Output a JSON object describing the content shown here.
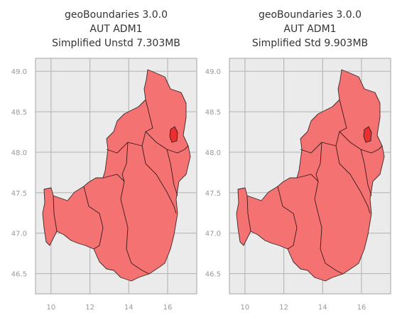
{
  "chart_data": [
    {
      "type": "map",
      "title": [
        "geoBoundaries 3.0.0",
        "AUT ADM1",
        "Simplified Unstd 7.303MB"
      ],
      "xlim": [
        9.2,
        17.5
      ],
      "xticks": [
        10,
        12,
        14,
        16
      ],
      "ylim": [
        46.25,
        49.16
      ],
      "yticks": [
        {
          "value": 46.5,
          "label": "46.5"
        },
        {
          "value": 47,
          "label": "47.0"
        },
        {
          "value": 47.5,
          "label": "47.5"
        },
        {
          "value": 48,
          "label": "48.0"
        },
        {
          "value": 48.5,
          "label": "48.5"
        },
        {
          "value": 49,
          "label": "49.0"
        }
      ],
      "grid": true
    },
    {
      "type": "map",
      "title": [
        "geoBoundaries 3.0.0",
        "AUT ADM1",
        "Simplified Std 9.903MB"
      ],
      "xlim": [
        9.2,
        17.5
      ],
      "xticks": [
        10,
        12,
        14,
        16
      ],
      "ylim": [
        46.25,
        49.16
      ],
      "yticks": [
        {
          "value": 46.5,
          "label": "46.5"
        },
        {
          "value": 47,
          "label": "47.0"
        },
        {
          "value": 47.5,
          "label": "47.5"
        },
        {
          "value": 48,
          "label": "48.0"
        },
        {
          "value": 48.5,
          "label": "48.5"
        },
        {
          "value": 49,
          "label": "49.0"
        }
      ],
      "grid": true
    }
  ]
}
